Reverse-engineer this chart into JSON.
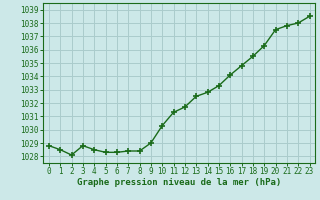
{
  "x": [
    0,
    1,
    2,
    3,
    4,
    5,
    6,
    7,
    8,
    9,
    10,
    11,
    12,
    13,
    14,
    15,
    16,
    17,
    18,
    19,
    20,
    21,
    22,
    23
  ],
  "y": [
    1028.8,
    1028.5,
    1028.1,
    1028.8,
    1028.5,
    1028.3,
    1028.3,
    1028.4,
    1028.4,
    1029.0,
    1030.3,
    1031.3,
    1031.7,
    1032.5,
    1032.8,
    1033.3,
    1034.1,
    1034.8,
    1035.5,
    1036.3,
    1037.5,
    1037.8,
    1038.0,
    1038.5
  ],
  "line_color": "#1a6b1a",
  "marker": "+",
  "marker_size": 4,
  "marker_lw": 1.2,
  "line_width": 1.0,
  "bg_color": "#cce8e8",
  "grid_color": "#aacccc",
  "xlabel": "Graphe pression niveau de la mer (hPa)",
  "xlabel_color": "#1a6b1a",
  "tick_color": "#1a6b1a",
  "spine_color": "#1a6b1a",
  "ylim_min": 1027.5,
  "ylim_max": 1039.5,
  "xlim_min": -0.5,
  "xlim_max": 23.5,
  "yticks": [
    1028,
    1029,
    1030,
    1031,
    1032,
    1033,
    1034,
    1035,
    1036,
    1037,
    1038,
    1039
  ],
  "xticks": [
    0,
    1,
    2,
    3,
    4,
    5,
    6,
    7,
    8,
    9,
    10,
    11,
    12,
    13,
    14,
    15,
    16,
    17,
    18,
    19,
    20,
    21,
    22,
    23
  ],
  "tick_fontsize": 5.5,
  "xlabel_fontsize": 6.5
}
